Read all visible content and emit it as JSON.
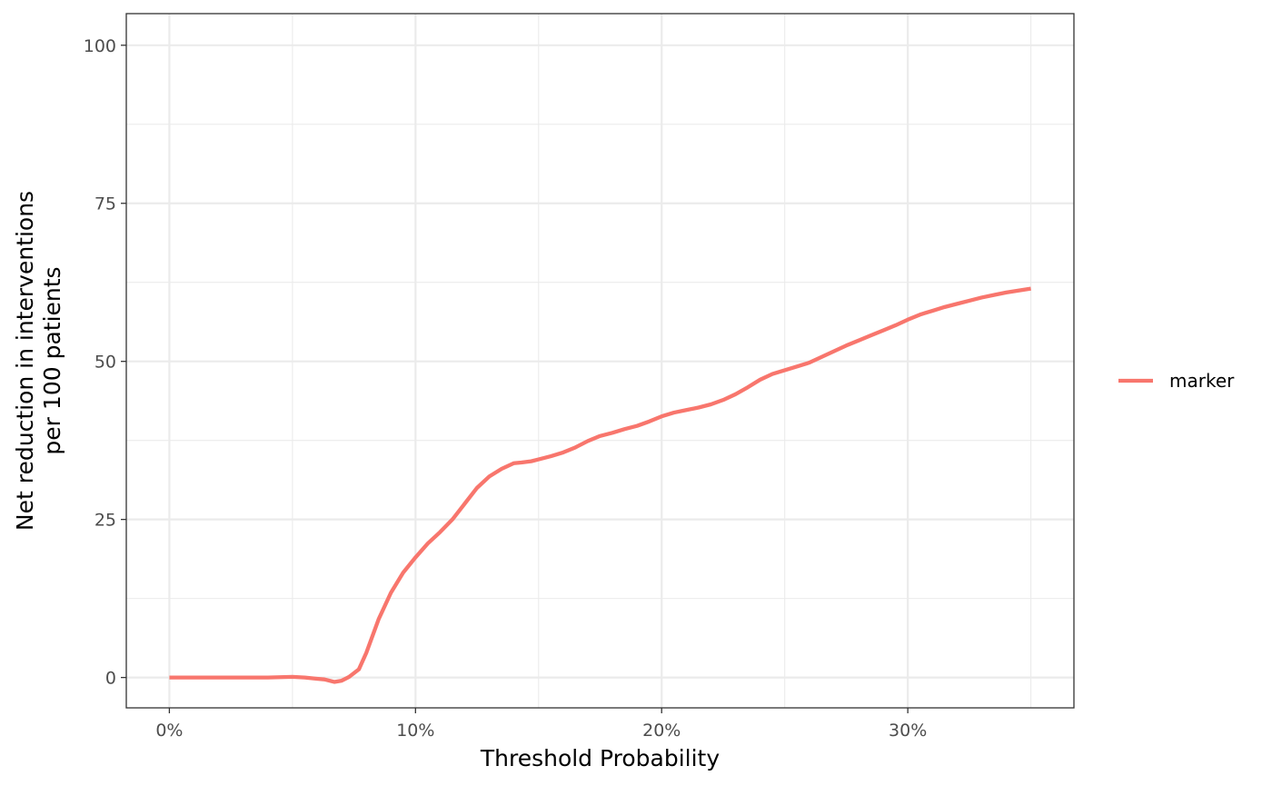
{
  "chart_data": {
    "type": "line",
    "xlabel": "Threshold Probability",
    "ylabel_lines": [
      "Net reduction in interventions",
      "per 100 patients"
    ],
    "xlim": [
      -0.0175,
      0.3675
    ],
    "ylim": [
      -4.8,
      105
    ],
    "x_ticks": [
      0,
      0.1,
      0.2,
      0.3
    ],
    "x_tick_labels": [
      "0%",
      "10%",
      "20%",
      "30%"
    ],
    "x_minor_ticks": [
      0.05,
      0.15,
      0.25,
      0.35
    ],
    "y_ticks": [
      0,
      25,
      50,
      75,
      100
    ],
    "y_tick_labels": [
      "0",
      "25",
      "50",
      "75",
      "100"
    ],
    "y_minor_ticks": [
      12.5,
      37.5,
      62.5,
      87.5
    ],
    "grid": true,
    "legend_position": "right",
    "colors": {
      "marker": "#f8766d",
      "grid": "#ebebeb",
      "panel_border": "#333333"
    },
    "series": [
      {
        "name": "marker",
        "x": [
          0,
          0.01,
          0.02,
          0.03,
          0.04,
          0.05,
          0.055,
          0.06,
          0.063,
          0.067,
          0.07,
          0.073,
          0.077,
          0.08,
          0.085,
          0.09,
          0.095,
          0.1,
          0.105,
          0.11,
          0.115,
          0.12,
          0.125,
          0.13,
          0.135,
          0.14,
          0.143,
          0.147,
          0.15,
          0.155,
          0.16,
          0.165,
          0.17,
          0.175,
          0.18,
          0.185,
          0.19,
          0.195,
          0.2,
          0.205,
          0.21,
          0.215,
          0.22,
          0.225,
          0.23,
          0.235,
          0.24,
          0.245,
          0.25,
          0.255,
          0.26,
          0.265,
          0.27,
          0.275,
          0.28,
          0.285,
          0.29,
          0.295,
          0.3,
          0.305,
          0.31,
          0.315,
          0.32,
          0.325,
          0.33,
          0.335,
          0.34,
          0.345,
          0.35
        ],
        "y": [
          0,
          0,
          0,
          0,
          0,
          0.1,
          0,
          -0.2,
          -0.3,
          -0.7,
          -0.5,
          0.1,
          1.3,
          3.9,
          9.2,
          13.4,
          16.6,
          19.0,
          21.2,
          23.0,
          25.0,
          27.5,
          30.0,
          31.8,
          33.0,
          33.9,
          34.0,
          34.2,
          34.5,
          35.0,
          35.6,
          36.4,
          37.4,
          38.2,
          38.7,
          39.3,
          39.8,
          40.5,
          41.3,
          41.9,
          42.3,
          42.7,
          43.2,
          43.9,
          44.8,
          45.9,
          47.1,
          48.0,
          48.6,
          49.2,
          49.8,
          50.7,
          51.6,
          52.5,
          53.3,
          54.1,
          54.9,
          55.7,
          56.6,
          57.4,
          58.0,
          58.6,
          59.1,
          59.6,
          60.1,
          60.5,
          60.9,
          61.2,
          61.5
        ]
      }
    ]
  }
}
